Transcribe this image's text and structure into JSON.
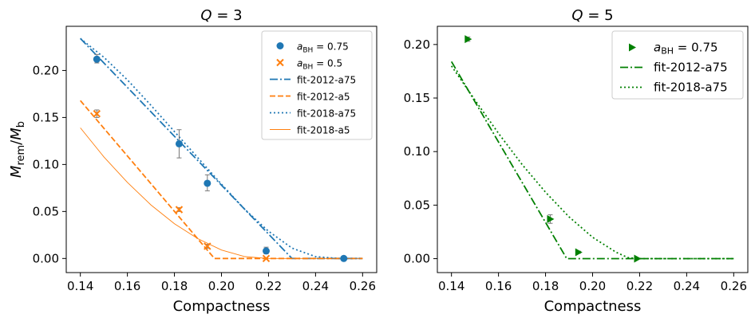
{
  "chart_data": [
    {
      "type": "scatter",
      "title": "Q = 3",
      "title_var": "Q",
      "title_value": "3",
      "xlabel": "Compactness",
      "ylabel": "M_rem/M_b",
      "ylabel_main": "M",
      "ylabel_sub_top": "rem",
      "ylabel_sub_bottom": "b",
      "xlim": [
        0.134,
        0.266
      ],
      "ylim": [
        -0.015,
        0.247
      ],
      "xticks": [
        0.14,
        0.16,
        0.18,
        0.2,
        0.22,
        0.24,
        0.26
      ],
      "xtick_labels": [
        "0.14",
        "0.16",
        "0.18",
        "0.20",
        "0.22",
        "0.24",
        "0.26"
      ],
      "yticks": [
        0.0,
        0.05,
        0.1,
        0.15,
        0.2
      ],
      "ytick_labels": [
        "0.00",
        "0.05",
        "0.10",
        "0.15",
        "0.20"
      ],
      "legend_location": "top-right",
      "scatter_series": [
        {
          "name": "a_BH = 0.75",
          "legend_main": "a",
          "legend_sub": "BH",
          "legend_value": "= 0.75",
          "marker": "circle",
          "color": "#1f77b4",
          "points": [
            {
              "x": 0.147,
              "y": 0.212,
              "err_low": 0.208,
              "err_high": 0.217
            },
            {
              "x": 0.182,
              "y": 0.122,
              "err_low": 0.107,
              "err_high": 0.137
            },
            {
              "x": 0.194,
              "y": 0.08,
              "err_low": 0.072,
              "err_high": 0.089
            },
            {
              "x": 0.219,
              "y": 0.008,
              "err_low": 0.005,
              "err_high": 0.012
            },
            {
              "x": 0.252,
              "y": 0.0,
              "err_low": 0.0,
              "err_high": 0.0
            }
          ]
        },
        {
          "name": "a_BH = 0.5",
          "legend_main": "a",
          "legend_sub": "BH",
          "legend_value": "= 0.5",
          "marker": "x",
          "color": "#ff7f0e",
          "points": [
            {
              "x": 0.147,
              "y": 0.154,
              "err_low": 0.15,
              "err_high": 0.158
            },
            {
              "x": 0.182,
              "y": 0.052,
              "err_low": 0.05,
              "err_high": 0.054
            },
            {
              "x": 0.194,
              "y": 0.013,
              "err_low": 0.011,
              "err_high": 0.015
            },
            {
              "x": 0.219,
              "y": 0.0,
              "err_low": 0.0,
              "err_high": 0.0
            }
          ]
        }
      ],
      "line_series": [
        {
          "name": "fit-2012-a75",
          "color": "#1f77b4",
          "dash": "dashdot",
          "width": 1.8,
          "points": [
            [
              0.14,
              0.234
            ],
            [
              0.23,
              0.0
            ],
            [
              0.26,
              0.0
            ]
          ]
        },
        {
          "name": "fit-2012-a5",
          "color": "#ff7f0e",
          "dash": "dashed",
          "width": 1.8,
          "points": [
            [
              0.14,
              0.168
            ],
            [
              0.197,
              0.0
            ],
            [
              0.26,
              0.0
            ]
          ]
        },
        {
          "name": "fit-2018-a75",
          "color": "#1f77b4",
          "dash": "dotted",
          "width": 1.8,
          "points": [
            [
              0.14,
              0.234
            ],
            [
              0.15,
              0.214
            ],
            [
              0.16,
              0.19
            ],
            [
              0.17,
              0.163
            ],
            [
              0.18,
              0.135
            ],
            [
              0.19,
              0.107
            ],
            [
              0.2,
              0.079
            ],
            [
              0.21,
              0.052
            ],
            [
              0.22,
              0.029
            ],
            [
              0.23,
              0.011
            ],
            [
              0.24,
              0.002
            ],
            [
              0.25,
              0.0
            ],
            [
              0.26,
              0.0
            ]
          ]
        },
        {
          "name": "fit-2018-a5",
          "color": "#ff7f0e",
          "dash": "solid",
          "width": 0.9,
          "points": [
            [
              0.14,
              0.139
            ],
            [
              0.15,
              0.108
            ],
            [
              0.16,
              0.081
            ],
            [
              0.17,
              0.057
            ],
            [
              0.18,
              0.037
            ],
            [
              0.19,
              0.021
            ],
            [
              0.2,
              0.009
            ],
            [
              0.21,
              0.002
            ],
            [
              0.22,
              0.0
            ],
            [
              0.26,
              0.0
            ]
          ]
        }
      ]
    },
    {
      "type": "scatter",
      "title": "Q = 5",
      "title_var": "Q",
      "title_value": "5",
      "xlabel": "Compactness",
      "ylabel": "",
      "xlim": [
        0.134,
        0.266
      ],
      "ylim": [
        -0.013,
        0.217
      ],
      "xticks": [
        0.14,
        0.16,
        0.18,
        0.2,
        0.22,
        0.24,
        0.26
      ],
      "xtick_labels": [
        "0.14",
        "0.16",
        "0.18",
        "0.20",
        "0.22",
        "0.24",
        "0.26"
      ],
      "yticks": [
        0.0,
        0.05,
        0.1,
        0.15,
        0.2
      ],
      "ytick_labels": [
        "0.00",
        "0.05",
        "0.10",
        "0.15",
        "0.20"
      ],
      "legend_location": "top-right",
      "scatter_series": [
        {
          "name": "a_BH = 0.75",
          "legend_main": "a",
          "legend_sub": "BH",
          "legend_value": "= 0.75",
          "marker": "triangle-right",
          "color": "#008000",
          "points": [
            {
              "x": 0.147,
              "y": 0.205,
              "err_low": 0.203,
              "err_high": 0.207
            },
            {
              "x": 0.182,
              "y": 0.037,
              "err_low": 0.033,
              "err_high": 0.041
            },
            {
              "x": 0.194,
              "y": 0.006,
              "err_low": 0.005,
              "err_high": 0.007
            },
            {
              "x": 0.219,
              "y": 0.0,
              "err_low": 0.0,
              "err_high": 0.0
            }
          ]
        }
      ],
      "line_series": [
        {
          "name": "fit-2012-a75",
          "color": "#008000",
          "dash": "dashdot",
          "width": 1.8,
          "points": [
            [
              0.14,
              0.184
            ],
            [
              0.189,
              0.0
            ],
            [
              0.26,
              0.0
            ]
          ]
        },
        {
          "name": "fit-2018-a75",
          "color": "#008000",
          "dash": "dotted",
          "width": 1.8,
          "points": [
            [
              0.14,
              0.18
            ],
            [
              0.15,
              0.148
            ],
            [
              0.16,
              0.117
            ],
            [
              0.17,
              0.088
            ],
            [
              0.18,
              0.062
            ],
            [
              0.19,
              0.039
            ],
            [
              0.2,
              0.02
            ],
            [
              0.21,
              0.006
            ],
            [
              0.215,
              0.001
            ],
            [
              0.22,
              0.0
            ],
            [
              0.26,
              0.0
            ]
          ]
        }
      ]
    }
  ]
}
